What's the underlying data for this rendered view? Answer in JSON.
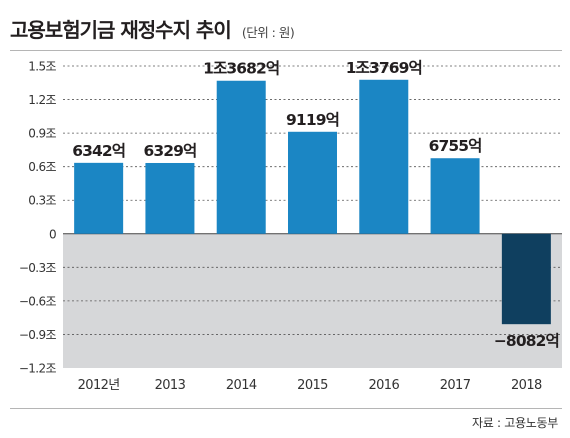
{
  "header": {
    "title": "고용보험기금 재정수지 추이",
    "unit": "(단위 : 원)"
  },
  "source": "자료 : 고용노동부",
  "colors": {
    "positive_bar": "#1b86c4",
    "negative_bar": "#0f3f5f",
    "negative_region": "#d6d7d9",
    "grid": "#555555",
    "text": "#231f20"
  },
  "chart_data": {
    "type": "bar",
    "categories": [
      "2012년",
      "2013",
      "2014",
      "2015",
      "2016",
      "2017",
      "2018"
    ],
    "values": [
      0.6342,
      0.6329,
      1.3682,
      0.9119,
      1.3769,
      0.6755,
      -0.8082
    ],
    "data_labels": [
      "6342억",
      "6329억",
      "1조3682억",
      "9119억",
      "1조3769억",
      "6755억",
      "−8082억"
    ],
    "ylim": [
      -1.2,
      1.5
    ],
    "yticks": [
      1.5,
      1.2,
      0.9,
      0.6,
      0.3,
      0,
      -0.3,
      -0.6,
      -0.9,
      -1.2
    ],
    "ytick_labels": [
      "1.5조",
      "1.2조",
      "0.9조",
      "0.6조",
      "0.3조",
      "0",
      "−0.3조",
      "−0.6조",
      "−0.9조",
      "−1.2조"
    ],
    "grid": "dashed horizontal",
    "negative_region_shaded": true
  }
}
